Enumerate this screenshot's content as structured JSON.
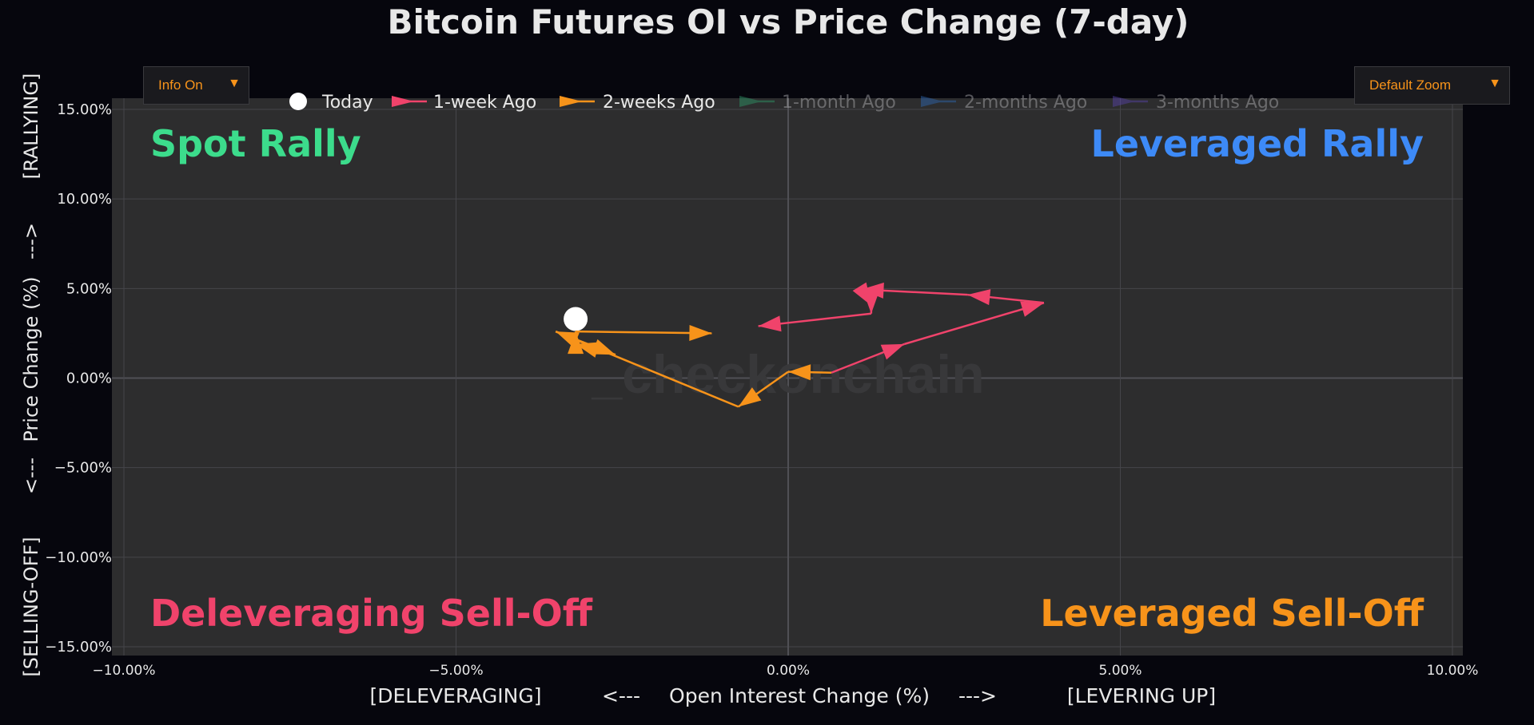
{
  "controls": {
    "info_label": "Info On",
    "zoom_label": "Default Zoom",
    "caret": "▼"
  },
  "watermark": "_checkonchain",
  "colors": {
    "background": "#06060d",
    "plot_bg": "#2d2d2e",
    "grid": "#45454a",
    "text": "#e8e8e8",
    "today": "#ffffff",
    "week1": "#f0436b",
    "week2": "#f7931a",
    "month1": "#2e9c6a",
    "month2": "#2d6ab8",
    "month3": "#5b45b0",
    "spot_rally": "#3cdc8c",
    "leveraged_rally": "#3d8af7",
    "deleveraging": "#f0436b",
    "leveraged_selloff": "#f7931a"
  },
  "chart_data": {
    "type": "scatter",
    "title": "Bitcoin Futures OI vs Price Change (7-day)",
    "xlabel": "[DELEVERAGING]     <---   Open Interest Change (%)   --->     [LEVERING UP]",
    "xlabel_parts": [
      "[DELEVERAGING]",
      "<---",
      "Open Interest Change (%)",
      "--->",
      "[LEVERING UP]"
    ],
    "ylabel_parts": [
      "[SELLING-OFF]",
      "<---",
      "Price Change (%)",
      "--->",
      "[RALLYING]"
    ],
    "xlim": [
      -10,
      10
    ],
    "ylim": [
      -15,
      15
    ],
    "xticks": [
      -10,
      -5,
      0,
      5,
      10
    ],
    "xtick_labels": [
      "−10.00%",
      "−5.00%",
      "0.00%",
      "5.00%",
      "10.00%"
    ],
    "yticks": [
      15,
      10,
      5,
      0,
      -5,
      -10,
      -15
    ],
    "ytick_labels": [
      "15.00%",
      "10.00%",
      "5.00%",
      "0.00%",
      "−5.00%",
      "−10.00%",
      "−15.00%"
    ],
    "grid": true,
    "legend_position": "top",
    "quadrants": [
      {
        "name": "spot-rally",
        "label": "Spot Rally",
        "position": "top-left"
      },
      {
        "name": "leveraged-rally",
        "label": "Leveraged Rally",
        "position": "top-right"
      },
      {
        "name": "deleveraging-sell-off",
        "label": "Deleveraging Sell-Off",
        "position": "bottom-left"
      },
      {
        "name": "leveraged-sell-off",
        "label": "Leveraged Sell-Off",
        "position": "bottom-right"
      }
    ],
    "series": [
      {
        "name": "Today",
        "key": "today",
        "marker": "circle",
        "visible": true,
        "points": [
          [
            -3.2,
            3.3
          ]
        ]
      },
      {
        "name": "1-week Ago",
        "key": "week1",
        "marker": "arrow",
        "visible": true,
        "points": [
          [
            0.65,
            0.3
          ],
          [
            1.75,
            1.9
          ],
          [
            3.85,
            4.2
          ],
          [
            2.7,
            4.65
          ],
          [
            1.1,
            4.95
          ],
          [
            1.25,
            4.05
          ],
          [
            1.25,
            3.6
          ],
          [
            -0.45,
            2.9
          ]
        ]
      },
      {
        "name": "2-weeks Ago",
        "key": "week2",
        "marker": "arrow",
        "visible": true,
        "points": [
          [
            0.65,
            0.3
          ],
          [
            0.0,
            0.35
          ],
          [
            -0.75,
            -1.6
          ],
          [
            -3.5,
            2.6
          ],
          [
            -2.6,
            1.3
          ],
          [
            -3.2,
            1.9
          ],
          [
            -3.2,
            2.6
          ],
          [
            -1.15,
            2.5
          ]
        ]
      },
      {
        "name": "1-month Ago",
        "key": "month1",
        "marker": "arrow",
        "visible": false,
        "points": []
      },
      {
        "name": "2-months Ago",
        "key": "month2",
        "marker": "arrow",
        "visible": false,
        "points": []
      },
      {
        "name": "3-months Ago",
        "key": "month3",
        "marker": "arrow",
        "visible": false,
        "points": []
      }
    ]
  }
}
